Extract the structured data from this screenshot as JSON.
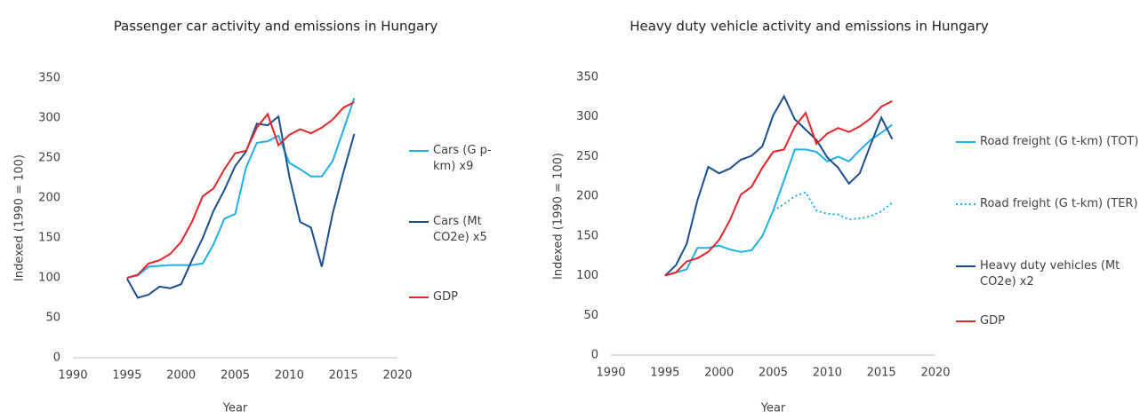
{
  "chart_data": [
    {
      "type": "line",
      "title": "Passenger car activity and emissions in Hungary",
      "x_label": "Year",
      "y_label": "Indexed (1990 = 100)",
      "x": [
        1995,
        1996,
        1997,
        1998,
        1999,
        2000,
        2001,
        2002,
        2003,
        2004,
        2005,
        2006,
        2007,
        2008,
        2009,
        2010,
        2011,
        2012,
        2013,
        2014,
        2015,
        2016
      ],
      "xlim": [
        1990,
        2020
      ],
      "xticks": [
        1990,
        1995,
        2000,
        2005,
        2010,
        2015,
        2020
      ],
      "ylim": [
        0,
        350
      ],
      "yticks": [
        0,
        50,
        100,
        150,
        200,
        250,
        300,
        350
      ],
      "grid": false,
      "legend": "right",
      "series": [
        {
          "name": "Cars (G p-km) x9",
          "color": "#1fb0e6",
          "style": "solid",
          "values": [
            100,
            103,
            114,
            115,
            116,
            116,
            116,
            118,
            142,
            174,
            180,
            238,
            269,
            271,
            278,
            244,
            236,
            227,
            227,
            246,
            285,
            325
          ]
        },
        {
          "name": "Cars (Mt CO2e) x5",
          "color": "#1a4e8c",
          "style": "solid",
          "values": [
            99,
            75,
            79,
            89,
            87,
            92,
            122,
            150,
            184,
            210,
            240,
            258,
            293,
            291,
            302,
            227,
            170,
            163,
            114,
            180,
            232,
            280
          ]
        },
        {
          "name": "GDP",
          "color": "#e3242b",
          "style": "solid",
          "values": [
            100,
            104,
            118,
            122,
            130,
            145,
            170,
            202,
            212,
            236,
            256,
            259,
            288,
            305,
            266,
            279,
            286,
            281,
            288,
            298,
            313,
            320
          ]
        }
      ]
    },
    {
      "type": "line",
      "title": "Heavy duty vehicle activity and emissions in Hungary",
      "x_label": "Year",
      "y_label": "Indexed (1990 = 100)",
      "x": [
        1995,
        1996,
        1997,
        1998,
        1999,
        2000,
        2001,
        2002,
        2003,
        2004,
        2005,
        2006,
        2007,
        2008,
        2009,
        2010,
        2011,
        2012,
        2013,
        2014,
        2015,
        2016
      ],
      "xlim": [
        1990,
        2020
      ],
      "xticks": [
        1990,
        1995,
        2000,
        2005,
        2010,
        2015,
        2020
      ],
      "ylim": [
        0,
        350
      ],
      "yticks": [
        0,
        50,
        100,
        150,
        200,
        250,
        300,
        350
      ],
      "grid": false,
      "legend": "right",
      "series": [
        {
          "name": "Road freight (G t-km) (TOT)",
          "color": "#1fb0e6",
          "style": "solid",
          "values": [
            100,
            104,
            108,
            135,
            135,
            138,
            133,
            130,
            132,
            150,
            182,
            220,
            259,
            259,
            256,
            244,
            250,
            244,
            258,
            271,
            280,
            290
          ]
        },
        {
          "name": "Road freight (G t-km) (TER)",
          "color": "#1fb0e6",
          "style": "dotted",
          "values": [
            null,
            null,
            null,
            null,
            null,
            null,
            null,
            null,
            null,
            null,
            182,
            190,
            200,
            205,
            182,
            178,
            177,
            171,
            172,
            175,
            181,
            192
          ]
        },
        {
          "name": "Heavy duty vehicles (Mt CO2e) x2",
          "color": "#1a4e8c",
          "style": "solid",
          "values": [
            100,
            113,
            140,
            195,
            237,
            229,
            235,
            246,
            251,
            263,
            302,
            326,
            297,
            284,
            271,
            249,
            236,
            216,
            229,
            265,
            299,
            272
          ]
        },
        {
          "name": "GDP",
          "color": "#e3242b",
          "style": "solid",
          "values": [
            100,
            104,
            118,
            122,
            130,
            145,
            170,
            202,
            212,
            236,
            256,
            259,
            288,
            305,
            266,
            279,
            286,
            281,
            288,
            298,
            313,
            320
          ]
        }
      ]
    }
  ]
}
